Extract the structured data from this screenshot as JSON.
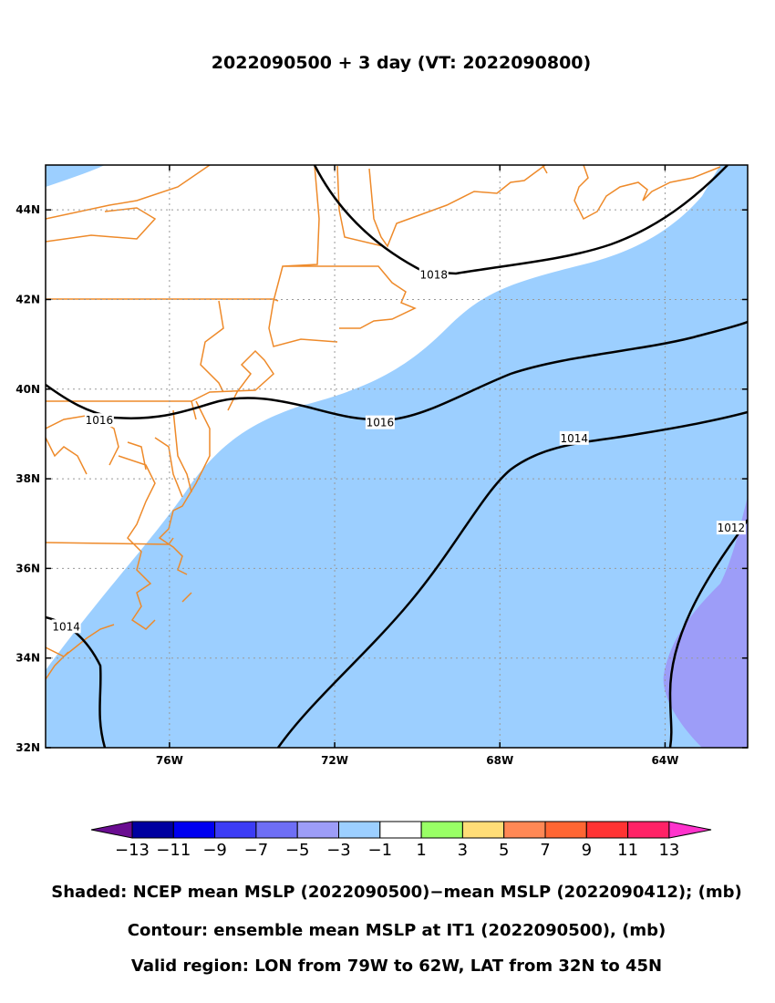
{
  "title": "2022090500 + 3 day (VT: 2022090800)",
  "lat_axis": {
    "ticks": [
      "44N",
      "42N",
      "40N",
      "38N",
      "36N",
      "34N",
      "32N"
    ],
    "values": [
      44,
      42,
      40,
      38,
      36,
      34,
      32
    ]
  },
  "lon_axis": {
    "ticks": [
      "76W",
      "72W",
      "68W",
      "64W"
    ],
    "values": [
      -76,
      -72,
      -68,
      -64
    ]
  },
  "region": {
    "lon_min": -79,
    "lon_max": -62,
    "lat_min": 32,
    "lat_max": 45
  },
  "contour_labels": [
    {
      "text": "1018",
      "lon": -69.6,
      "lat": 42.55
    },
    {
      "text": "1016",
      "lon": -77.7,
      "lat": 39.3
    },
    {
      "text": "1016",
      "lon": -70.9,
      "lat": 39.25
    },
    {
      "text": "1014",
      "lon": -66.2,
      "lat": 38.9
    },
    {
      "text": "1014",
      "lon": -78.5,
      "lat": 34.7
    },
    {
      "text": "1012",
      "lon": -62.4,
      "lat": 36.9
    }
  ],
  "colorbar": {
    "labels": [
      "−13",
      "−11",
      "−9",
      "−7",
      "−5",
      "−3",
      "−1",
      "1",
      "3",
      "5",
      "7",
      "9",
      "11",
      "13"
    ],
    "colors": [
      "#6a0d91",
      "#0000a0",
      "#0000f0",
      "#3c3cf5",
      "#6e6ef5",
      "#9d9df8",
      "#9ccfff",
      "#ffffff",
      "#99ff66",
      "#ffdd77",
      "#ff8855",
      "#ff6633",
      "#ff3333",
      "#ff2266",
      "#ff33cc"
    ]
  },
  "captions": {
    "shaded": "Shaded: NCEP mean MSLP (2022090500)−mean MSLP (2022090412); (mb)",
    "contour": "Contour: ensemble mean MSLP at IT1 (2022090500), (mb)",
    "region": "Valid region: LON from 79W to 62W, LAT from 32N to 45N"
  }
}
